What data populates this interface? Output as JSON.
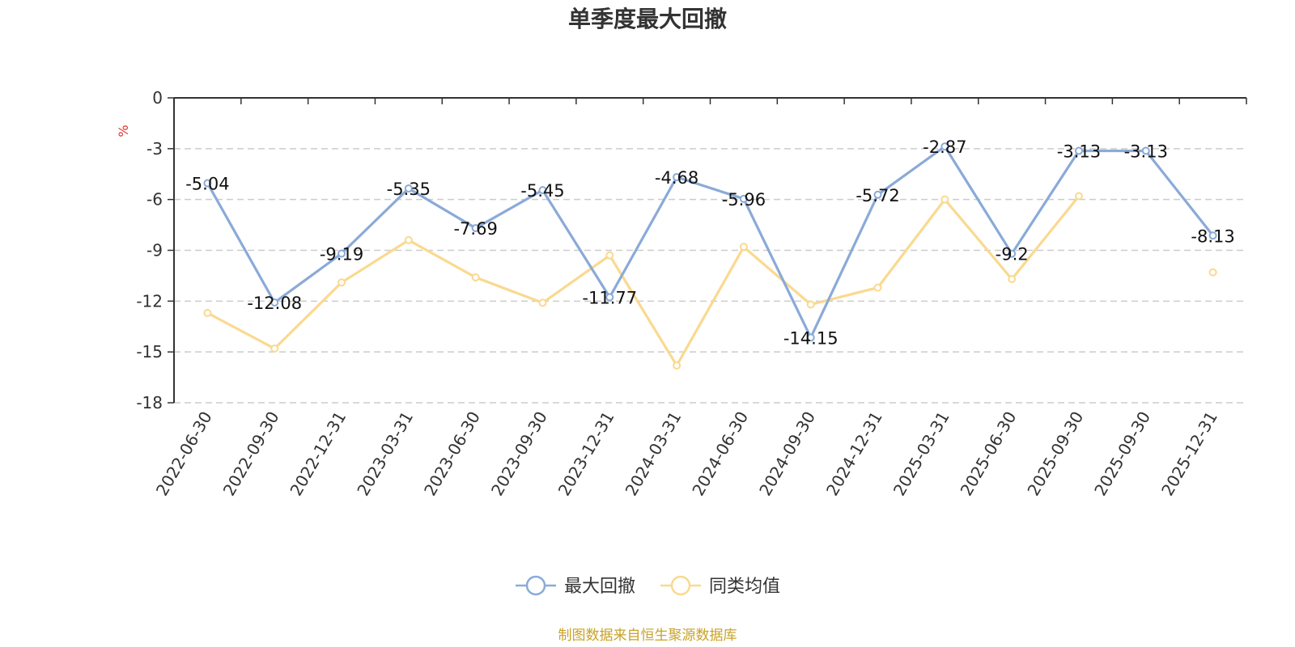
{
  "chart_data": {
    "type": "line",
    "title": "单季度最大回撤",
    "ylabel": "%",
    "ylim": [
      -18,
      0
    ],
    "yticks": [
      0,
      -3,
      -6,
      -9,
      -12,
      -15,
      -18
    ],
    "grid": true,
    "legend_position": "bottom",
    "categories": [
      "2022-06-30",
      "2022-09-30",
      "2022-12-31",
      "2023-03-31",
      "2023-06-30",
      "2023-09-30",
      "2023-12-31",
      "2024-03-31",
      "2024-06-30",
      "2024-09-30",
      "2024-12-31",
      "2025-03-31",
      "2025-06-30",
      "2025-09-30",
      "2025-09-30",
      "2025-12-31"
    ],
    "series": [
      {
        "name": "最大回撤",
        "color": "#8aaad8",
        "values": [
          -5.04,
          -12.08,
          -9.19,
          -5.35,
          -7.69,
          -5.45,
          -11.77,
          -4.68,
          -5.96,
          -14.15,
          -5.72,
          -2.87,
          -9.2,
          -3.13,
          -3.13,
          -8.13
        ],
        "labels": [
          "-5.04",
          "-12.08",
          "-9.19",
          "-5.35",
          "-7.69",
          "-5.45",
          "-11.77",
          "-4.68",
          "-5.96",
          "-14.15",
          "-5.72",
          "-2.87",
          "-9.2",
          "-3.13",
          "-3.13",
          "-8.13"
        ]
      },
      {
        "name": "同类均值",
        "color": "#fad98f",
        "values": [
          -12.7,
          -14.8,
          -10.9,
          -8.4,
          -10.6,
          -12.1,
          -9.3,
          -15.8,
          -8.8,
          -12.2,
          -11.2,
          -6.0,
          -10.7,
          -5.8,
          null,
          -10.3
        ]
      }
    ],
    "source": "制图数据来自恒生聚源数据库"
  }
}
